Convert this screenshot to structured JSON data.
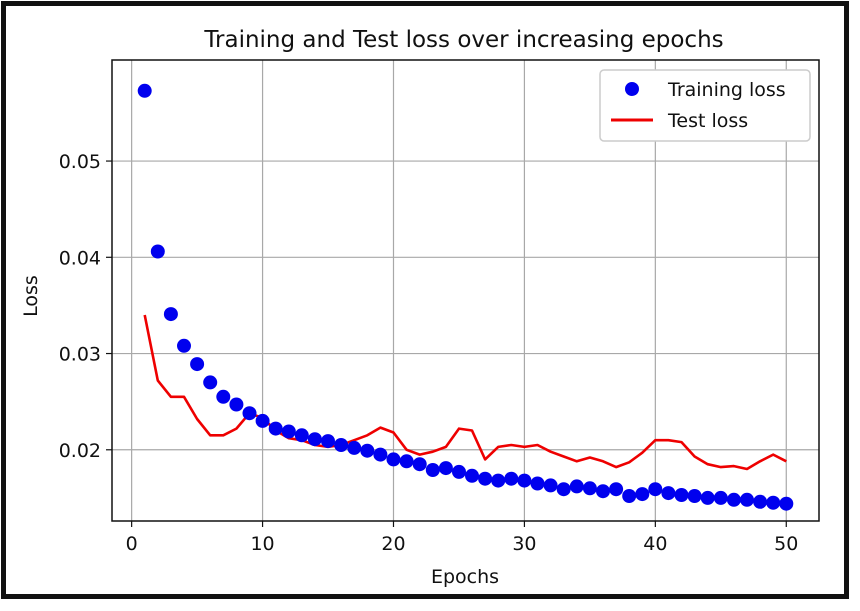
{
  "chart_data": {
    "type": "line",
    "title": "Training and Test loss over increasing epochs",
    "xlabel": "Epochs",
    "ylabel": "Loss",
    "xlim": [
      -1.5,
      52.5
    ],
    "ylim": [
      0.0126,
      0.0605
    ],
    "xticks": [
      0,
      10,
      20,
      30,
      40,
      50
    ],
    "yticks": [
      0.02,
      0.03,
      0.04,
      0.05
    ],
    "xtick_labels": [
      "0",
      "10",
      "20",
      "30",
      "40",
      "50"
    ],
    "ytick_labels": [
      "0.02",
      "0.03",
      "0.04",
      "0.05"
    ],
    "grid": true,
    "legend_position": "top-right",
    "x": [
      1,
      2,
      3,
      4,
      5,
      6,
      7,
      8,
      9,
      10,
      11,
      12,
      13,
      14,
      15,
      16,
      17,
      18,
      19,
      20,
      21,
      22,
      23,
      24,
      25,
      26,
      27,
      28,
      29,
      30,
      31,
      32,
      33,
      34,
      35,
      36,
      37,
      38,
      39,
      40,
      41,
      42,
      43,
      44,
      45,
      46,
      47,
      48,
      49,
      50
    ],
    "series": [
      {
        "name": "Training loss",
        "style": "markers",
        "color": "#0000ee",
        "values": [
          0.0573,
          0.0406,
          0.0341,
          0.0308,
          0.0289,
          0.027,
          0.0255,
          0.0247,
          0.0238,
          0.023,
          0.0222,
          0.0219,
          0.0215,
          0.0211,
          0.0209,
          0.0205,
          0.0202,
          0.0199,
          0.0195,
          0.019,
          0.0188,
          0.0185,
          0.0179,
          0.0181,
          0.0177,
          0.0173,
          0.017,
          0.0168,
          0.017,
          0.0168,
          0.0165,
          0.0163,
          0.0159,
          0.0162,
          0.016,
          0.0157,
          0.0159,
          0.0152,
          0.0154,
          0.0159,
          0.0155,
          0.0153,
          0.0152,
          0.015,
          0.015,
          0.0148,
          0.0148,
          0.0146,
          0.0145,
          0.0144
        ]
      },
      {
        "name": "Test loss",
        "style": "line",
        "color": "#ee0000",
        "values": [
          0.034,
          0.0272,
          0.0255,
          0.0255,
          0.0232,
          0.0215,
          0.0215,
          0.0222,
          0.0238,
          0.0233,
          0.022,
          0.0212,
          0.021,
          0.0205,
          0.0203,
          0.0205,
          0.021,
          0.0215,
          0.0223,
          0.0218,
          0.02,
          0.0195,
          0.0198,
          0.0203,
          0.0222,
          0.022,
          0.019,
          0.0203,
          0.0205,
          0.0203,
          0.0205,
          0.0198,
          0.0193,
          0.0188,
          0.0192,
          0.0188,
          0.0182,
          0.0187,
          0.0197,
          0.021,
          0.021,
          0.0208,
          0.0193,
          0.0185,
          0.0182,
          0.0183,
          0.018,
          0.0188,
          0.0195,
          0.0188
        ]
      }
    ]
  }
}
